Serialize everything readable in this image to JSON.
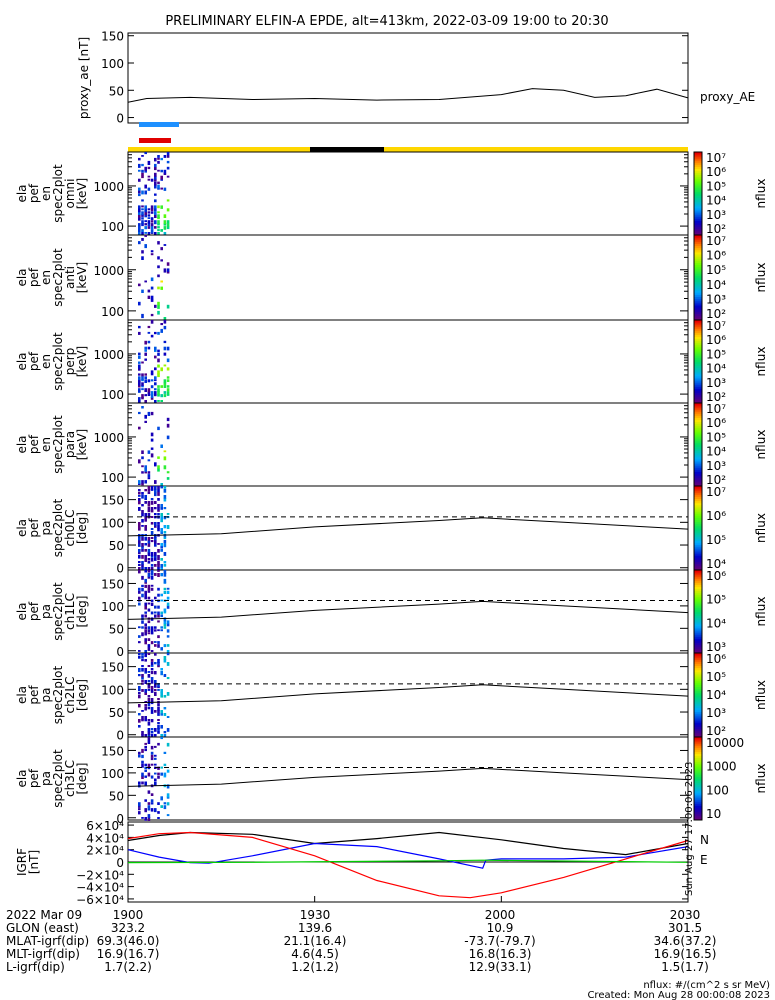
{
  "title": "PRELIMINARY ELFIN-A EPDE, alt=413km, 2022-03-09 19:00 to 20:30",
  "chart_data": [
    {
      "type": "line",
      "ylabel": "proxy_ae [nT]",
      "yticks": [
        "0",
        "50",
        "100",
        "150"
      ],
      "ylim": [
        -10,
        155
      ],
      "series": [
        {
          "name": "proxy_AE",
          "x": [
            0,
            3,
            10,
            20,
            30,
            40,
            50,
            60,
            65,
            70,
            75,
            80,
            85,
            90
          ],
          "values": [
            28,
            35,
            37,
            33,
            35,
            32,
            33,
            42,
            53,
            50,
            37,
            40,
            52,
            36
          ]
        }
      ]
    },
    {
      "type": "heatmap",
      "ylabel": [
        "ela",
        "pef",
        "en",
        "spec2plot",
        "omni",
        "[keV]"
      ],
      "yticks": [
        "100",
        "1000"
      ],
      "colorbar": {
        "label": "nflux",
        "ticks": [
          "10²",
          "10³",
          "10⁴",
          "10⁵",
          "10⁶",
          "10⁷"
        ]
      }
    },
    {
      "type": "heatmap",
      "ylabel": [
        "ela",
        "pef",
        "en",
        "spec2plot",
        "anti",
        "[keV]"
      ],
      "yticks": [
        "100",
        "1000"
      ],
      "colorbar": {
        "label": "nflux",
        "ticks": [
          "10²",
          "10³",
          "10⁴",
          "10⁵",
          "10⁶",
          "10⁷"
        ]
      }
    },
    {
      "type": "heatmap",
      "ylabel": [
        "ela",
        "pef",
        "en",
        "spec2plot",
        "perp",
        "[keV]"
      ],
      "yticks": [
        "100",
        "1000"
      ],
      "colorbar": {
        "label": "nflux",
        "ticks": [
          "10²",
          "10³",
          "10⁴",
          "10⁵",
          "10⁶",
          "10⁷"
        ]
      }
    },
    {
      "type": "heatmap",
      "ylabel": [
        "ela",
        "pef",
        "en",
        "spec2plot",
        "para",
        "[keV]"
      ],
      "yticks": [
        "100",
        "1000"
      ],
      "colorbar": {
        "label": "nflux",
        "ticks": [
          "10²",
          "10³",
          "10⁴",
          "10⁵",
          "10⁶",
          "10⁷"
        ]
      }
    },
    {
      "type": "heatmap",
      "ylabel": [
        "ela",
        "pef",
        "pa",
        "spec2plot",
        "ch0LC",
        "[deg]"
      ],
      "yticks": [
        "0",
        "50",
        "100",
        "150"
      ],
      "colorbar": {
        "label": "nflux",
        "ticks": [
          "10⁴",
          "10⁵",
          "10⁶",
          "10⁷"
        ]
      }
    },
    {
      "type": "heatmap",
      "ylabel": [
        "ela",
        "pef",
        "pa",
        "spec2plot",
        "ch1LC",
        "[deg]"
      ],
      "yticks": [
        "0",
        "50",
        "100",
        "150"
      ],
      "colorbar": {
        "label": "nflux",
        "ticks": [
          "10³",
          "10⁴",
          "10⁵",
          "10⁶"
        ]
      }
    },
    {
      "type": "heatmap",
      "ylabel": [
        "ela",
        "pef",
        "pa",
        "spec2plot",
        "ch2LC",
        "[deg]"
      ],
      "yticks": [
        "0",
        "50",
        "100",
        "150"
      ],
      "colorbar": {
        "label": "nflux",
        "ticks": [
          "10²",
          "10³",
          "10⁴",
          "10⁵",
          "10⁶"
        ]
      }
    },
    {
      "type": "heatmap",
      "ylabel": [
        "ela",
        "pef",
        "pa",
        "spec2plot",
        "ch3LC",
        "[deg]"
      ],
      "yticks": [
        "0",
        "50",
        "100",
        "150"
      ],
      "colorbar": {
        "label": "nflux",
        "ticks": [
          "10",
          "100",
          "1000",
          "10000"
        ]
      }
    },
    {
      "type": "line",
      "ylabel": [
        "IGRF",
        "[nT]"
      ],
      "yticks": [
        "−6×10⁴",
        "−4×10⁴",
        "−2×10⁴",
        "0",
        "2×10⁴",
        "4×10⁴",
        "6×10⁴"
      ],
      "ylim": [
        -65000,
        65000
      ],
      "legend": [
        "N",
        "E"
      ],
      "series": [
        {
          "color": "#000000",
          "x": [
            0,
            5,
            10,
            20,
            30,
            40,
            50,
            60,
            70,
            80,
            90
          ],
          "values": [
            35000,
            43000,
            48000,
            45000,
            30000,
            38000,
            48000,
            36000,
            22000,
            12000,
            30000
          ]
        },
        {
          "color": "#0000ff",
          "x": [
            0,
            5,
            10,
            13,
            20,
            30,
            40,
            50,
            57,
            57.5,
            60,
            70,
            80,
            90
          ],
          "values": [
            20000,
            8000,
            -1000,
            -2000,
            10000,
            30000,
            25000,
            5000,
            -10000,
            3000,
            5000,
            5000,
            8000,
            25000
          ]
        },
        {
          "color": "#ff0000",
          "x": [
            0,
            5,
            10,
            20,
            30,
            40,
            50,
            55,
            60,
            70,
            80,
            90
          ],
          "values": [
            38000,
            46000,
            48000,
            40000,
            10000,
            -30000,
            -55000,
            -58000,
            -50000,
            -25000,
            5000,
            35000
          ]
        },
        {
          "color": "#00cc00",
          "x": [
            0,
            20,
            50,
            57,
            90
          ],
          "values": [
            -1000,
            -500,
            2000,
            3000,
            -500
          ]
        }
      ]
    }
  ],
  "footer": {
    "rows": [
      {
        "label": "2022 Mar 09",
        "values": [
          "1900",
          "1930",
          "2000",
          "2030"
        ]
      },
      {
        "label": "GLON (east)",
        "values": [
          "323.2",
          "139.6",
          "10.9",
          "301.5"
        ]
      },
      {
        "label": "MLAT-igrf(dip)",
        "values": [
          "69.3(46.0)",
          "21.1(16.4)",
          "-73.7(-79.7)",
          "34.6(37.2)"
        ]
      },
      {
        "label": "MLT-igrf(dip)",
        "values": [
          "16.9(16.7)",
          "4.6(4.5)",
          "16.8(16.3)",
          "16.9(16.5)"
        ]
      },
      {
        "label": "L-igrf(dip)",
        "values": [
          "1.7(2.2)",
          "1.2(1.2)",
          "12.9(33.1)",
          "1.5(1.7)"
        ]
      }
    ],
    "units_note": "nflux: #/(cm^2 s sr MeV)",
    "created": "Created: Mon Aug 28 00:00:08 2023",
    "side_stamp": "Sun Aug 27 17:00:06 2023"
  }
}
